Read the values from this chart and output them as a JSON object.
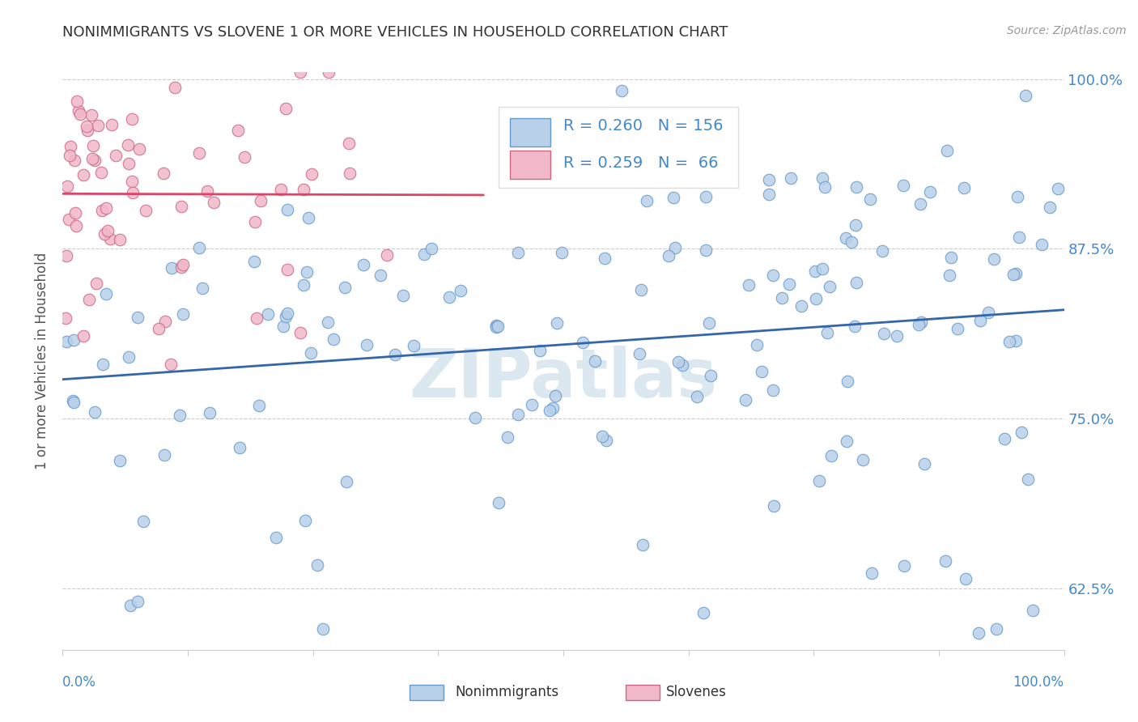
{
  "title": "NONIMMIGRANTS VS SLOVENE 1 OR MORE VEHICLES IN HOUSEHOLD CORRELATION CHART",
  "source": "Source: ZipAtlas.com",
  "ylabel": "1 or more Vehicles in Household",
  "ytick_labels": [
    "62.5%",
    "75.0%",
    "87.5%",
    "100.0%"
  ],
  "ytick_values": [
    0.625,
    0.75,
    0.875,
    1.0
  ],
  "blue_scatter_color": "#b8d0e8",
  "blue_edge_color": "#6699cc",
  "blue_line_color": "#3366aa",
  "pink_scatter_color": "#f0b8c8",
  "pink_edge_color": "#cc6688",
  "pink_line_color": "#dd4466",
  "background_color": "#ffffff",
  "watermark_color": "#dce8f0",
  "grid_color": "#cccccc",
  "axis_label_color": "#4488cc",
  "tick_color": "#4488cc",
  "title_color": "#333333",
  "ylabel_color": "#555555",
  "legend_text_color": "#4488cc",
  "ymin": 0.58,
  "ymax": 1.005,
  "xmin": 0.0,
  "xmax": 1.0
}
